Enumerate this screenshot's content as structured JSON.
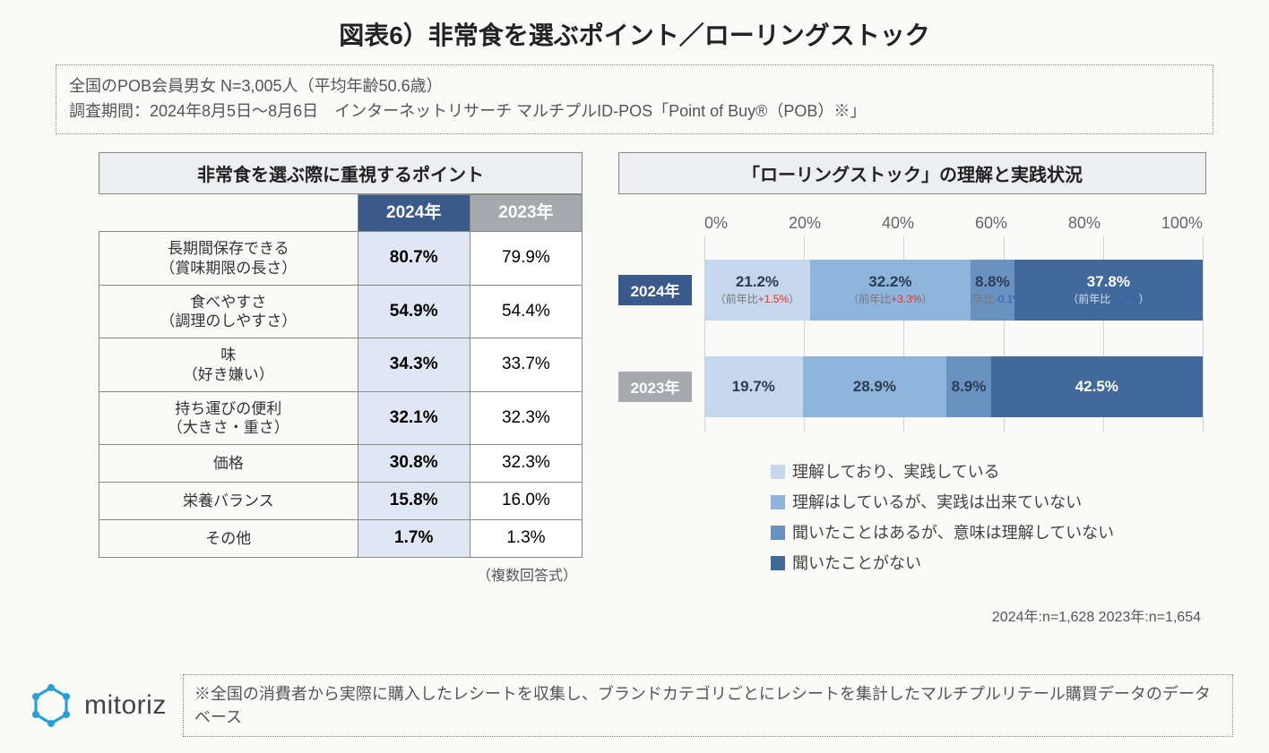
{
  "title": "図表6）非常食を選ぶポイント／ローリングストック",
  "meta": {
    "line1": "全国のPOB会員男女 N=3,005人（平均年齢50.6歳）",
    "line2": "調査期間：2024年8月5日～8月6日　インターネットリサーチ マルチプルID-POS「Point of Buy®（POB）※」"
  },
  "table": {
    "header": "非常食を選ぶ際に重視するポイント",
    "col_2024": "2024年",
    "col_2023": "2023年",
    "col_2024_bg": "#3b5a8c",
    "col_2023_bg": "#a6a9ae",
    "cell_2024_bg": "#dee7f3",
    "rows": [
      {
        "label": "長期間保存できる\n（賞味期限の長さ）",
        "v2024": "80.7%",
        "v2023": "79.9%"
      },
      {
        "label": "食べやすさ\n（調理のしやすさ）",
        "v2024": "54.9%",
        "v2023": "54.4%"
      },
      {
        "label": "味\n（好き嫌い）",
        "v2024": "34.3%",
        "v2023": "33.7%"
      },
      {
        "label": "持ち運びの便利\n（大きさ・重さ）",
        "v2024": "32.1%",
        "v2023": "32.3%"
      },
      {
        "label": "価格",
        "v2024": "30.8%",
        "v2023": "32.3%"
      },
      {
        "label": "栄養バランス",
        "v2024": "15.8%",
        "v2023": "16.0%"
      },
      {
        "label": "その他",
        "v2024": "1.7%",
        "v2023": "1.3%"
      }
    ],
    "note": "（複数回答式）"
  },
  "chart": {
    "header": "「ローリングストック」の理解と実践状況",
    "axis": {
      "ticks": [
        "0%",
        "20%",
        "40%",
        "60%",
        "80%",
        "100%"
      ],
      "tick_pos": [
        0,
        20,
        40,
        60,
        80,
        100
      ]
    },
    "colors": [
      "#c5d7ed",
      "#8fb4db",
      "#6a92c1",
      "#41699a"
    ],
    "legend": [
      "理解しており、実践している",
      "理解はしているが、実践は出来ていない",
      "聞いたことはあるが、意味は理解していない",
      "聞いたことがない"
    ],
    "series": [
      {
        "year": "2024年",
        "pill_bg": "#3b5a8c",
        "segments": [
          {
            "value": 21.2,
            "label": "21.2%",
            "delta": "（前年比",
            "delta_val": "+1.5%",
            "delta_close": "）",
            "dir": "up"
          },
          {
            "value": 32.2,
            "label": "32.2%",
            "delta": "（前年比",
            "delta_val": "+3.3%",
            "delta_close": "）",
            "dir": "up"
          },
          {
            "value": 8.8,
            "label": "8.8%",
            "delta": "（前年比",
            "delta_val": "-0.1%",
            "delta_close": "）",
            "dir": "down"
          },
          {
            "value": 37.8,
            "label": "37.8%",
            "delta": "（前年比",
            "delta_val": "-4.7%",
            "delta_close": "）",
            "dir": "down"
          }
        ]
      },
      {
        "year": "2023年",
        "pill_bg": "#a6a9ae",
        "segments": [
          {
            "value": 19.7,
            "label": "19.7%"
          },
          {
            "value": 28.9,
            "label": "28.9%"
          },
          {
            "value": 8.9,
            "label": "8.9%"
          },
          {
            "value": 42.5,
            "label": "42.5%"
          }
        ]
      }
    ],
    "n_note": "2024年:n=1,628  2023年:n=1,654"
  },
  "footnote": "※全国の消費者から実際に購入したレシートを収集し、ブランドカテゴリごとにレシートを集計したマルチプルリテール購買データのデータベース",
  "logo_text": "mitoriz",
  "logo_color": "#2a9fd6"
}
